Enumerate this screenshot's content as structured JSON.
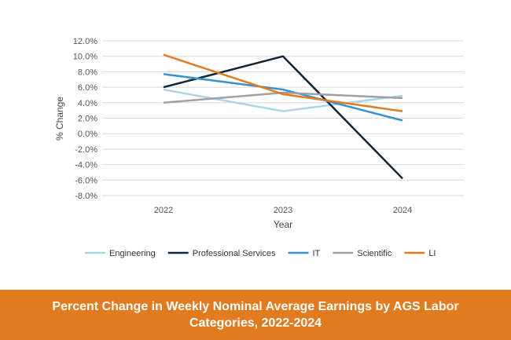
{
  "chart_data": {
    "type": "line",
    "title": "",
    "xlabel": "Year",
    "ylabel": "% Change",
    "categories": [
      "2022",
      "2023",
      "2024"
    ],
    "ylim": [
      -8.0,
      12.0
    ],
    "ytick_step": 2.0,
    "yticks": [
      "-8.0%",
      "-6.0%",
      "-4.0%",
      "-2.0%",
      "0.0%",
      "2.0%",
      "4.0%",
      "6.0%",
      "8.0%",
      "10.0%",
      "12.0%"
    ],
    "grid": true,
    "legend_position": "bottom",
    "series": [
      {
        "name": "Engineering",
        "values": [
          5.7,
          2.9,
          4.9
        ],
        "color": "#a9d4ec"
      },
      {
        "name": "Professional Services",
        "values": [
          6.0,
          10.0,
          -5.8
        ],
        "color": "#13233a"
      },
      {
        "name": "IT",
        "values": [
          7.7,
          5.7,
          1.7
        ],
        "color": "#3a92cc"
      },
      {
        "name": "Scientific",
        "values": [
          4.0,
          5.3,
          4.6
        ],
        "color": "#a0a0a0"
      },
      {
        "name": "LI",
        "values": [
          10.2,
          5.1,
          2.9
        ],
        "color": "#e07b20"
      }
    ]
  },
  "footer": {
    "caption": "Percent Change in Weekly Nominal Average Earnings by AGS Labor Categories, 2022-2024",
    "color": "#e07b20"
  }
}
